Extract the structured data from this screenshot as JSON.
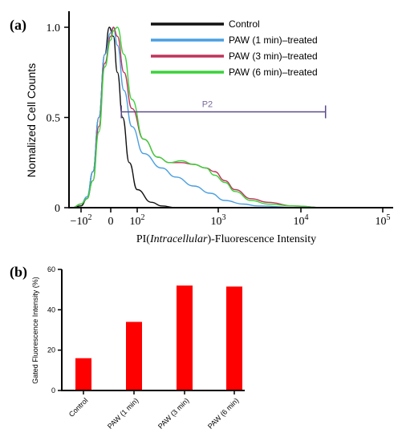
{
  "chart_data": [
    {
      "panel": "(a)",
      "type": "line",
      "xlabel_plain": "PI(",
      "xlabel_italic": "Intracellular",
      "xlabel_end": ")-Fluorescence Intensity",
      "ylabel": "Nomalized Cell Counts",
      "x_scale": "biexponential",
      "x_ticks": [
        {
          "base": "−10",
          "exp": "2",
          "value": -100
        },
        {
          "base": "0",
          "exp": "",
          "value": 0
        },
        {
          "base": "10",
          "exp": "2",
          "value": 100
        },
        {
          "base": "10",
          "exp": "3",
          "value": 1000
        },
        {
          "base": "10",
          "exp": "4",
          "value": 10000
        },
        {
          "base": "10",
          "exp": "5",
          "value": 100000
        }
      ],
      "y_ticks": [
        "0",
        "0.5",
        "1.0"
      ],
      "ylim": [
        0,
        1.05
      ],
      "grid": false,
      "legend_position": "top-right",
      "gate": {
        "label": "P2",
        "x_start": 40,
        "x_end": 20000,
        "y": 0.54
      },
      "series": [
        {
          "name": "Control",
          "color": "#111111",
          "points": [
            [
              -130,
              0
            ],
            [
              -100,
              0.01
            ],
            [
              -80,
              0.05
            ],
            [
              -60,
              0.2
            ],
            [
              -40,
              0.5
            ],
            [
              -20,
              0.85
            ],
            [
              -5,
              1.0
            ],
            [
              10,
              0.95
            ],
            [
              25,
              0.75
            ],
            [
              45,
              0.5
            ],
            [
              70,
              0.25
            ],
            [
              100,
              0.1
            ],
            [
              150,
              0.03
            ],
            [
              200,
              0.01
            ],
            [
              300,
              0
            ],
            [
              1000,
              0
            ],
            [
              100000,
              0
            ]
          ]
        },
        {
          "name": "PAW (1 min)–treated",
          "color": "#4a9fe0",
          "points": [
            [
              -130,
              0
            ],
            [
              -100,
              0.02
            ],
            [
              -80,
              0.06
            ],
            [
              -60,
              0.2
            ],
            [
              -40,
              0.5
            ],
            [
              -20,
              0.85
            ],
            [
              0,
              0.97
            ],
            [
              10,
              1.0
            ],
            [
              25,
              0.9
            ],
            [
              50,
              0.65
            ],
            [
              80,
              0.45
            ],
            [
              120,
              0.3
            ],
            [
              200,
              0.22
            ],
            [
              300,
              0.17
            ],
            [
              500,
              0.12
            ],
            [
              800,
              0.08
            ],
            [
              1200,
              0.04
            ],
            [
              2000,
              0.02
            ],
            [
              3000,
              0.01
            ],
            [
              10000,
              0
            ],
            [
              100000,
              0
            ]
          ]
        },
        {
          "name": "PAW (3 min)–treated",
          "color": "#c0345a",
          "points": [
            [
              -130,
              0
            ],
            [
              -100,
              0.02
            ],
            [
              -80,
              0.05
            ],
            [
              -60,
              0.15
            ],
            [
              -40,
              0.45
            ],
            [
              -20,
              0.8
            ],
            [
              0,
              0.95
            ],
            [
              10,
              1.0
            ],
            [
              25,
              0.95
            ],
            [
              50,
              0.75
            ],
            [
              80,
              0.55
            ],
            [
              120,
              0.38
            ],
            [
              180,
              0.28
            ],
            [
              250,
              0.25
            ],
            [
              350,
              0.25
            ],
            [
              500,
              0.24
            ],
            [
              700,
              0.22
            ],
            [
              900,
              0.2
            ],
            [
              1200,
              0.15
            ],
            [
              1600,
              0.1
            ],
            [
              2500,
              0.05
            ],
            [
              4000,
              0.03
            ],
            [
              8000,
              0.01
            ],
            [
              20000,
              0
            ],
            [
              100000,
              0
            ]
          ]
        },
        {
          "name": "PAW (6 min)–treated",
          "color": "#3ad23a",
          "points": [
            [
              -130,
              0
            ],
            [
              -100,
              0.02
            ],
            [
              -80,
              0.05
            ],
            [
              -60,
              0.15
            ],
            [
              -40,
              0.42
            ],
            [
              -20,
              0.78
            ],
            [
              0,
              0.93
            ],
            [
              10,
              0.98
            ],
            [
              25,
              1.0
            ],
            [
              50,
              0.85
            ],
            [
              80,
              0.6
            ],
            [
              120,
              0.38
            ],
            [
              180,
              0.28
            ],
            [
              250,
              0.25
            ],
            [
              350,
              0.26
            ],
            [
              500,
              0.24
            ],
            [
              700,
              0.22
            ],
            [
              900,
              0.18
            ],
            [
              1200,
              0.14
            ],
            [
              1600,
              0.09
            ],
            [
              2500,
              0.04
            ],
            [
              4000,
              0.02
            ],
            [
              8000,
              0.01
            ],
            [
              20000,
              0
            ],
            [
              100000,
              0
            ]
          ]
        }
      ]
    },
    {
      "panel": "(b)",
      "type": "bar",
      "ylabel": "Gated Fluorescence Intensity (%)",
      "categories": [
        "Control",
        "PAW (1 min)",
        "PAW (3 min)",
        "PAW (6 min)"
      ],
      "values": [
        16,
        34,
        52,
        51.5
      ],
      "ylim": [
        0,
        60
      ],
      "y_ticks": [
        "0",
        "20",
        "40",
        "60"
      ],
      "bar_color": "#ff0000",
      "grid": false
    }
  ]
}
